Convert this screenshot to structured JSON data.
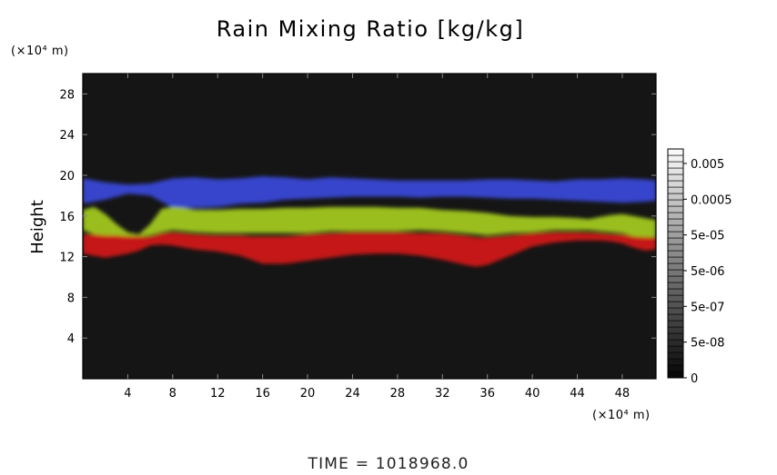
{
  "chart_data": {
    "type": "heatmap",
    "title": "Rain Mixing Ratio [kg/kg]",
    "ylabel": "Height",
    "y_unit": "(×10⁴ m)",
    "x_unit": "(×10⁴ m)",
    "xlim": [
      0,
      51
    ],
    "ylim": [
      0,
      30
    ],
    "x_ticks": [
      4,
      8,
      12,
      16,
      20,
      24,
      28,
      32,
      36,
      40,
      44,
      48
    ],
    "y_ticks": [
      4,
      8,
      12,
      16,
      20,
      24,
      28
    ],
    "x_tick_labels": [
      "4",
      "8",
      "12",
      "16",
      "20",
      "24",
      "28",
      "32",
      "36",
      "40",
      "44",
      "48"
    ],
    "y_tick_labels": [
      "4",
      "8",
      "12",
      "16",
      "20",
      "24",
      "28"
    ],
    "colorbar": {
      "labels": [
        "0.005",
        "0.0005",
        "5e-05",
        "5e-06",
        "5e-07",
        "5e-08",
        "0"
      ]
    },
    "colors": {
      "plot_background": "#151515",
      "upper_layer": "#3a4be0",
      "middle_layer": "#a8d020",
      "lower_layer": "#d81818"
    },
    "layers": [
      {
        "color_key": "upper_layer",
        "x": [
          0,
          2,
          4,
          6,
          8,
          10,
          12,
          14,
          16,
          18,
          20,
          22,
          24,
          26,
          28,
          30,
          32,
          34,
          36,
          38,
          40,
          42,
          44,
          46,
          48,
          50,
          51
        ],
        "top": [
          19.7,
          19.3,
          19.1,
          19.2,
          19.7,
          19.8,
          19.6,
          19.7,
          19.9,
          19.8,
          19.6,
          19.8,
          19.7,
          19.6,
          19.5,
          19.5,
          19.5,
          19.5,
          19.6,
          19.6,
          19.5,
          19.4,
          19.6,
          19.6,
          19.7,
          19.6,
          19.5
        ],
        "bottom": [
          17.2,
          17.6,
          18.2,
          18.0,
          16.8,
          16.8,
          16.9,
          17.2,
          17.3,
          17.6,
          17.7,
          17.8,
          17.9,
          17.9,
          17.9,
          17.8,
          17.9,
          17.9,
          17.8,
          17.7,
          17.7,
          17.6,
          17.5,
          17.4,
          17.3,
          17.4,
          17.5
        ]
      },
      {
        "color_key": "middle_layer",
        "x": [
          0,
          1,
          2,
          3,
          4,
          5,
          6,
          7,
          8,
          9,
          10,
          12,
          14,
          16,
          18,
          20,
          22,
          24,
          26,
          28,
          30,
          32,
          34,
          36,
          38,
          40,
          42,
          44,
          45,
          46,
          47,
          48,
          49,
          50,
          51
        ],
        "top": [
          16.6,
          16.9,
          16.2,
          15.2,
          14.4,
          14.2,
          15.2,
          16.7,
          16.9,
          16.8,
          16.6,
          16.6,
          16.7,
          16.7,
          16.8,
          16.8,
          16.9,
          16.9,
          16.9,
          16.8,
          16.8,
          16.6,
          16.5,
          16.3,
          16.0,
          15.9,
          15.9,
          15.8,
          15.7,
          15.9,
          16.1,
          16.2,
          16.0,
          15.8,
          15.6
        ],
        "bottom": [
          14.6,
          14.2,
          14.0,
          14.0,
          14.0,
          14.0,
          14.1,
          14.4,
          14.6,
          14.5,
          14.4,
          14.3,
          14.3,
          14.3,
          14.3,
          14.3,
          14.5,
          14.5,
          14.5,
          14.5,
          14.6,
          14.5,
          14.3,
          14.1,
          14.3,
          14.4,
          14.6,
          14.6,
          14.6,
          14.5,
          14.4,
          14.3,
          14.0,
          13.9,
          13.9
        ]
      },
      {
        "color_key": "lower_layer",
        "x": [
          0,
          1,
          2,
          3,
          4,
          5,
          6,
          7,
          8,
          9,
          10,
          12,
          14,
          15,
          16,
          18,
          20,
          22,
          24,
          26,
          28,
          30,
          32,
          34,
          35,
          36,
          38,
          40,
          42,
          44,
          46,
          47,
          48,
          49,
          50,
          51
        ],
        "top": [
          14.2,
          14.2,
          14.1,
          14.1,
          14.0,
          14.0,
          14.0,
          14.3,
          14.4,
          14.3,
          14.2,
          14.1,
          14.1,
          14.0,
          14.0,
          14.0,
          14.2,
          14.3,
          14.4,
          14.4,
          14.4,
          14.3,
          14.3,
          14.1,
          13.9,
          13.9,
          14.1,
          14.3,
          14.4,
          14.4,
          14.3,
          14.2,
          14.2,
          14.0,
          13.9,
          13.9
        ],
        "bottom": [
          12.3,
          12.1,
          11.9,
          12.1,
          12.3,
          12.6,
          13.1,
          13.2,
          13.1,
          12.9,
          12.7,
          12.5,
          12.1,
          11.7,
          11.3,
          11.3,
          11.6,
          11.9,
          12.2,
          12.3,
          12.3,
          12.1,
          11.7,
          11.2,
          11.0,
          11.2,
          12.1,
          13.0,
          13.4,
          13.6,
          13.6,
          13.5,
          13.3,
          12.9,
          12.6,
          12.7
        ]
      }
    ]
  },
  "footer": {
    "time_text": "TIME  =  1018968.0"
  }
}
